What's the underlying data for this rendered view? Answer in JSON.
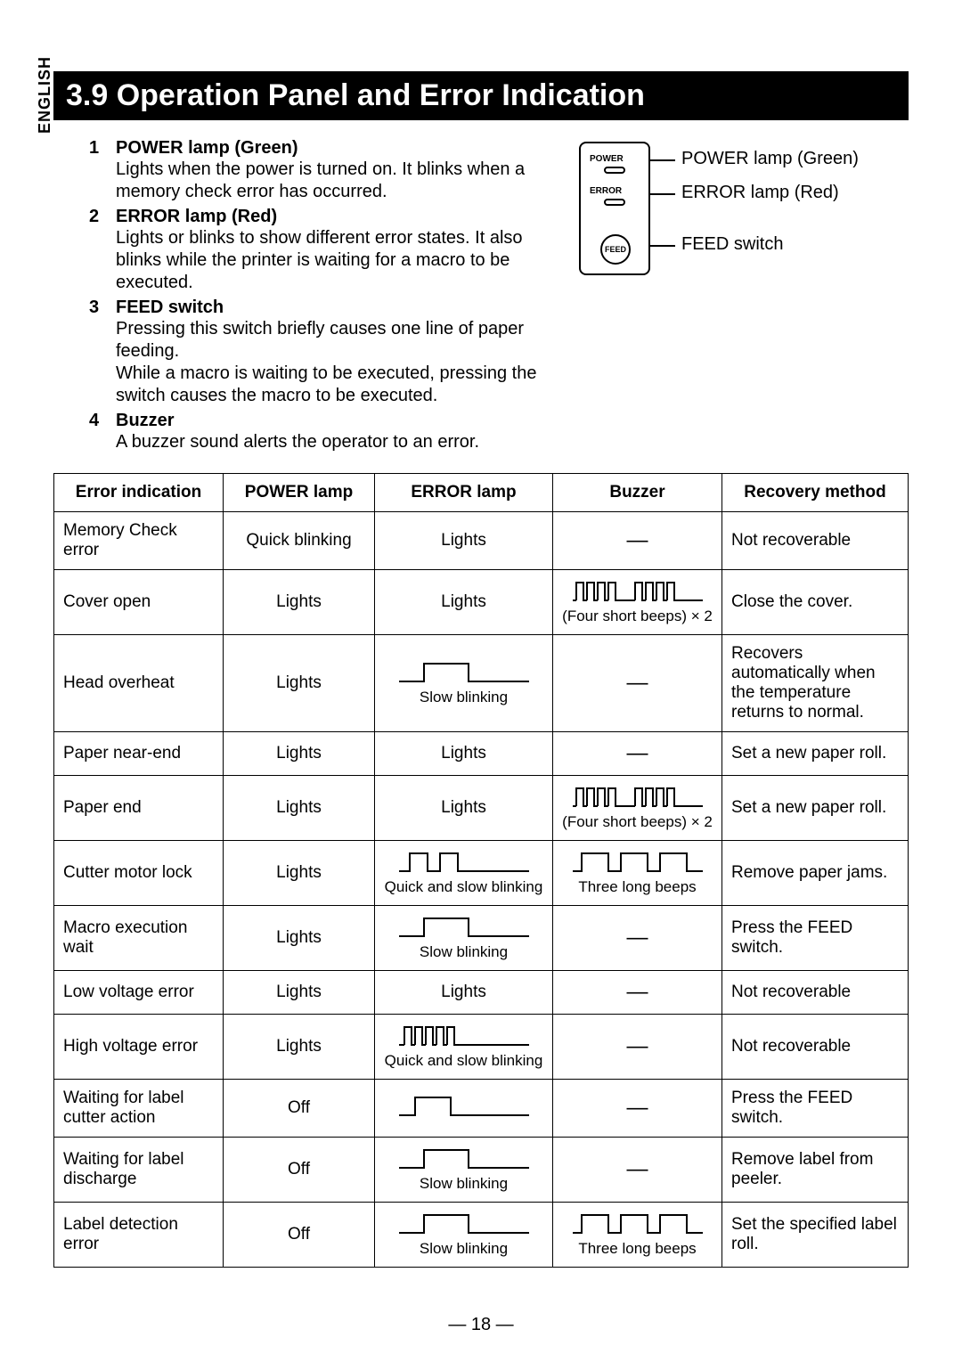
{
  "side_label": "ENGLISH",
  "title": "3.9 Operation Panel and Error Indication",
  "list": [
    {
      "num": "1",
      "head": "POWER lamp (Green)",
      "body": "Lights when the power is turned on. It blinks when a memory check error has occurred."
    },
    {
      "num": "2",
      "head": "ERROR lamp (Red)",
      "body": "Lights or blinks to show different error states. It also blinks while the printer is waiting for a macro to be executed."
    },
    {
      "num": "3",
      "head": "FEED switch",
      "body": "Pressing this switch briefly causes one line of paper feeding.\nWhile a macro is waiting to be executed, pressing the switch causes the macro to be executed."
    },
    {
      "num": "4",
      "head": "Buzzer",
      "body": "A buzzer sound alerts the operator to an error."
    }
  ],
  "panel": {
    "power_label": "POWER",
    "error_label": "ERROR",
    "feed_label": "FEED",
    "callouts": {
      "power": "POWER lamp (Green)",
      "error": "ERROR lamp (Red)",
      "feed": "FEED switch"
    }
  },
  "table": {
    "columns": [
      "Error indication",
      "POWER lamp",
      "ERROR lamp",
      "Buzzer",
      "Recovery method"
    ],
    "rows": [
      {
        "indication": "Memory Check error",
        "power": "Quick blinking",
        "error": {
          "type": "text",
          "text": "Lights"
        },
        "buzzer": {
          "type": "dash"
        },
        "recovery": "Not recoverable"
      },
      {
        "indication": "Cover open",
        "power": "Lights",
        "error": {
          "type": "text",
          "text": "Lights"
        },
        "buzzer": {
          "type": "signal",
          "shape": "four_short_x2",
          "caption": "(Four short beeps) × 2"
        },
        "recovery": "Close the cover."
      },
      {
        "indication": "Head overheat",
        "power": "Lights",
        "error": {
          "type": "signal",
          "shape": "slow_blink",
          "caption": "Slow blinking"
        },
        "buzzer": {
          "type": "dash"
        },
        "recovery": "Recovers automatically when the temperature returns to normal."
      },
      {
        "indication": "Paper near-end",
        "power": "Lights",
        "error": {
          "type": "text",
          "text": "Lights"
        },
        "buzzer": {
          "type": "dash"
        },
        "recovery": "Set a new paper roll."
      },
      {
        "indication": "Paper end",
        "power": "Lights",
        "error": {
          "type": "text",
          "text": "Lights"
        },
        "buzzer": {
          "type": "signal",
          "shape": "four_short_x2",
          "caption": "(Four short beeps) × 2"
        },
        "recovery": "Set a new paper roll."
      },
      {
        "indication": "Cutter motor lock",
        "power": "Lights",
        "error": {
          "type": "signal",
          "shape": "quick_slow",
          "caption": "Quick and slow blinking"
        },
        "buzzer": {
          "type": "signal",
          "shape": "three_long",
          "caption": "Three long beeps"
        },
        "recovery": "Remove paper jams."
      },
      {
        "indication": "Macro execution wait",
        "power": "Lights",
        "error": {
          "type": "signal",
          "shape": "slow_blink",
          "caption": "Slow blinking"
        },
        "buzzer": {
          "type": "dash"
        },
        "recovery": "Press the FEED switch."
      },
      {
        "indication": "Low voltage error",
        "power": "Lights",
        "error": {
          "type": "text",
          "text": "Lights"
        },
        "buzzer": {
          "type": "dash"
        },
        "recovery": "Not recoverable"
      },
      {
        "indication": "High voltage error",
        "power": "Lights",
        "error": {
          "type": "signal",
          "shape": "burst_slow",
          "caption": "Quick and slow blinking"
        },
        "buzzer": {
          "type": "dash"
        },
        "recovery": "Not recoverable"
      },
      {
        "indication": "Waiting for label cutter action",
        "power": "Off",
        "error": {
          "type": "signal",
          "shape": "single_pulse",
          "caption": ""
        },
        "buzzer": {
          "type": "dash"
        },
        "recovery": "Press the FEED switch."
      },
      {
        "indication": "Waiting for label discharge",
        "power": "Off",
        "error": {
          "type": "signal",
          "shape": "slow_blink",
          "caption": "Slow blinking"
        },
        "buzzer": {
          "type": "dash"
        },
        "recovery": "Remove label from peeler."
      },
      {
        "indication": "Label detection error",
        "power": "Off",
        "error": {
          "type": "signal",
          "shape": "slow_blink",
          "caption": "Slow blinking"
        },
        "buzzer": {
          "type": "signal",
          "shape": "three_long",
          "caption": "Three long beeps"
        },
        "recovery": "Set the specified label roll."
      }
    ]
  },
  "page_number": "— 18 —",
  "style": {
    "svg": {
      "stroke": "#000000",
      "stroke_width": 2,
      "width": 150,
      "height": 28
    }
  }
}
